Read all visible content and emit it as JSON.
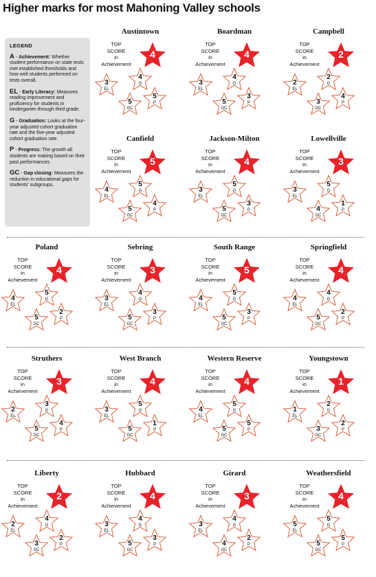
{
  "title": "Higher marks for most Mahoning Valley schools",
  "top_label": [
    "TOP",
    "SCORE",
    "in",
    "Achievement"
  ],
  "colors": {
    "star_fill": "#e8232a",
    "star_outline": "#d9603a",
    "legend_bg": "#e0e0e0"
  },
  "legend": {
    "heading": "LEGEND",
    "items": [
      {
        "code": "A",
        "name": "Achievement:",
        "desc": "Whether student performance on state tests met established thresholds and how well students performed on tests overall."
      },
      {
        "code": "EL",
        "name": "Early Literacy:",
        "desc": "Measures reading improvement and proficiency for students in kindergarten through third grade."
      },
      {
        "code": "G",
        "name": "Graduation:",
        "desc": "Looks at the four-year adjusted cohort graduation rate and the five-year adjusted cohort graduation rate."
      },
      {
        "code": "P",
        "name": "Progress:",
        "desc": "The growth all students are making based on their past performances."
      },
      {
        "code": "GC",
        "name": "Gap closing:",
        "desc": "Measures the reduction in educational gaps for students' subgroups."
      }
    ]
  },
  "schools": [
    {
      "name": "Austintown",
      "A": "4",
      "EL": "3",
      "G": "4",
      "P": "5",
      "GC": "5"
    },
    {
      "name": "Boardman",
      "A": "4",
      "EL": "3",
      "G": "4",
      "P": "3",
      "GC": "5"
    },
    {
      "name": "Campbell",
      "A": "2",
      "EL": "2",
      "G": "2",
      "P": "4",
      "GC": "3"
    },
    {
      "name": "Canfield",
      "A": "5",
      "EL": "4",
      "G": "5",
      "P": "4",
      "GC": "5"
    },
    {
      "name": "Jackson-Milton",
      "A": "4",
      "EL": "3",
      "G": "5",
      "P": "3",
      "GC": "5"
    },
    {
      "name": "Lowellville",
      "A": "3",
      "EL": "3",
      "G": "5",
      "P": "1",
      "GC": "4"
    },
    {
      "name": "Poland",
      "A": "4",
      "EL": "4",
      "G": "5",
      "P": "2",
      "GC": "5"
    },
    {
      "name": "Sebring",
      "A": "3",
      "EL": "3",
      "G": "4",
      "P": "3",
      "GC": "5"
    },
    {
      "name": "South Range",
      "A": "5",
      "EL": "4",
      "G": "5",
      "P": "3",
      "GC": "5"
    },
    {
      "name": "Springfield",
      "A": "4",
      "EL": "4",
      "G": "4",
      "P": "2",
      "GC": "5"
    },
    {
      "name": "Struthers",
      "A": "3",
      "EL": "2",
      "G": "3",
      "P": "4",
      "GC": "5"
    },
    {
      "name": "West Branch",
      "A": "4",
      "EL": "3",
      "G": "5",
      "P": "1",
      "GC": "5"
    },
    {
      "name": "Western Reserve",
      "A": "4",
      "EL": "4",
      "G": "5",
      "P": "5",
      "GC": "5"
    },
    {
      "name": "Youngstown",
      "A": "1",
      "EL": "1",
      "G": "2",
      "P": "2",
      "GC": "3"
    },
    {
      "name": "Liberty",
      "A": "2",
      "EL": "2",
      "G": "4",
      "P": "2",
      "GC": "3"
    },
    {
      "name": "Hubbard",
      "A": "4",
      "EL": "3",
      "G": "4",
      "P": "3",
      "GC": "5"
    },
    {
      "name": "Girard",
      "A": "3",
      "EL": "3",
      "G": "4",
      "P": "2",
      "GC": "4"
    },
    {
      "name": "Weathersfield",
      "A": "4",
      "EL": "5",
      "G": "5",
      "P": "5",
      "GC": "5"
    }
  ]
}
